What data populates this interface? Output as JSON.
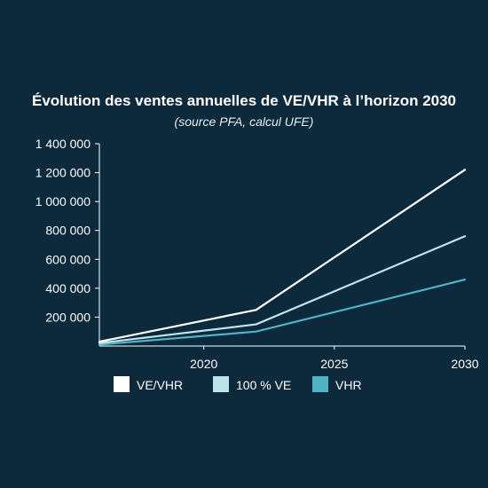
{
  "chart_data": {
    "type": "line",
    "title": "Évolution des ventes annuelles de VE/VHR à l’horizon 2030",
    "subtitle": "(source PFA, calcul UFE)",
    "xlabel": "",
    "ylabel": "",
    "x": [
      2016,
      2022,
      2030
    ],
    "xlim": [
      2016,
      2030
    ],
    "ylim": [
      0,
      1400000
    ],
    "x_ticks": [
      2020,
      2025,
      2030
    ],
    "y_ticks": [
      200000,
      400000,
      600000,
      800000,
      1000000,
      1200000,
      1400000
    ],
    "x_tick_labels": [
      "2020",
      "2025",
      "2030"
    ],
    "y_tick_labels": [
      "200 000",
      "400 000",
      "600 000",
      "800 000",
      "1 000 000",
      "1 200 000",
      "1 400 000"
    ],
    "grid": false,
    "legend_position": "bottom",
    "series": [
      {
        "name": "VE/VHR",
        "values": [
          30000,
          250000,
          1220000
        ],
        "color": "#ffffff"
      },
      {
        "name": "100 % VE",
        "values": [
          20000,
          150000,
          760000
        ],
        "color": "#bfe3ea"
      },
      {
        "name": "VHR",
        "values": [
          10000,
          100000,
          460000
        ],
        "color": "#4fb3c3"
      }
    ]
  }
}
